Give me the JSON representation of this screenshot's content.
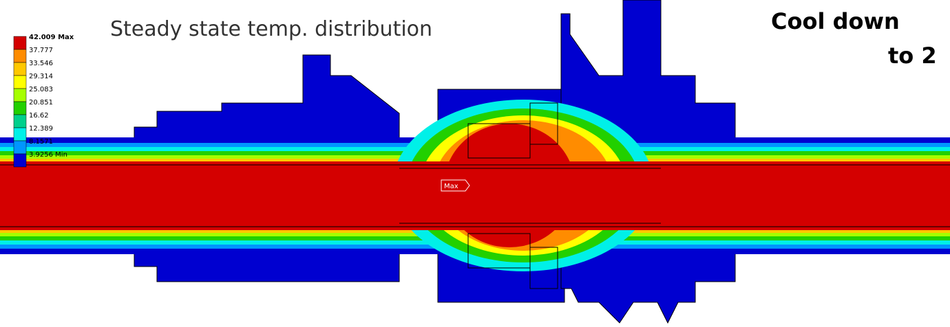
{
  "title": "Steady state temp. distribution",
  "heading": [
    "Cool down",
    "to 2"
  ],
  "legend": [
    {
      "label": "42.009 Max",
      "color": "#d40000"
    },
    {
      "label": "37.777",
      "color": "#ff8c00"
    },
    {
      "label": "33.546",
      "color": "#ffc800"
    },
    {
      "label": "29.314",
      "color": "#ffff00"
    },
    {
      "label": "25.083",
      "color": "#a6ff00"
    },
    {
      "label": "20.851",
      "color": "#22d000"
    },
    {
      "label": "16.62",
      "color": "#00d08c"
    },
    {
      "label": "12.389",
      "color": "#00f0e8"
    },
    {
      "label": "8.1571",
      "color": "#0096ff"
    },
    {
      "label": "3.9256 Min",
      "color": "#0000d0"
    }
  ],
  "probe": "Max"
}
